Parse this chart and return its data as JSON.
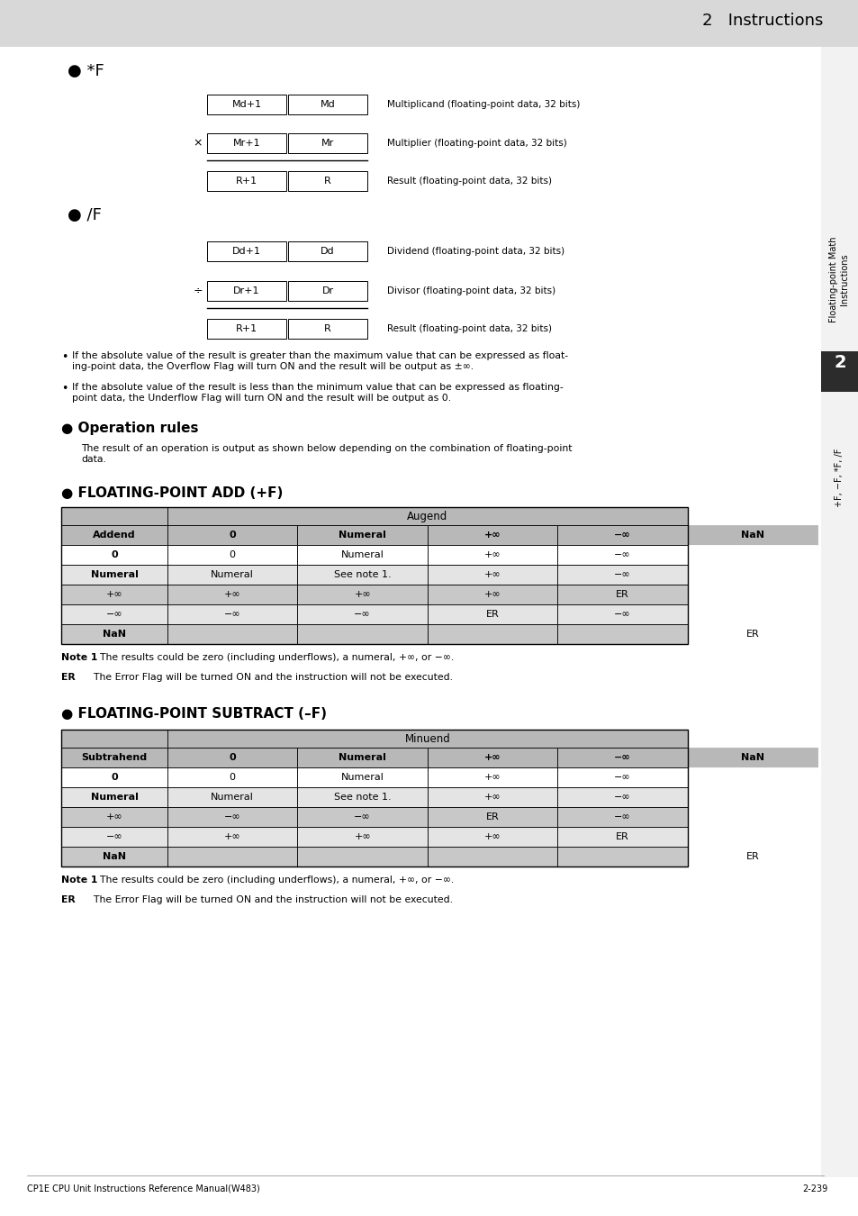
{
  "page_header": "2   Instructions",
  "bg_color": "#ffffff",
  "header_bg": "#d8d8d8",
  "section1_title": "● *F",
  "section2_title": "● /F",
  "section3_title": "● Operation rules",
  "section4_title": "● FLOATING-POINT ADD (+F)",
  "section5_title": "● FLOATING-POINT SUBTRACT (–F)",
  "multiply_rows": [
    {
      "left": "Md+1",
      "right": "Md",
      "label": "Multiplicand (floating-point data, 32 bits)",
      "prefix": ""
    },
    {
      "left": "Mr+1",
      "right": "Mr",
      "label": "Multiplier (floating-point data, 32 bits)",
      "prefix": "×"
    },
    {
      "left": "R+1",
      "right": "R",
      "label": "Result (floating-point data, 32 bits)",
      "prefix": ""
    }
  ],
  "divide_rows": [
    {
      "left": "Dd+1",
      "right": "Dd",
      "label": "Dividend (floating-point data, 32 bits)",
      "prefix": ""
    },
    {
      "left": "Dr+1",
      "right": "Dr",
      "label": "Divisor (floating-point data, 32 bits)",
      "prefix": "÷"
    },
    {
      "left": "R+1",
      "right": "R",
      "label": "Result (floating-point data, 32 bits)",
      "prefix": ""
    }
  ],
  "bullet1": "If the absolute value of the result is greater than the maximum value that can be expressed as float-\ning-point data, the Overflow Flag will turn ON and the result will be output as ±∞.",
  "bullet2": "If the absolute value of the result is less than the minimum value that can be expressed as floating-\npoint data, the Underflow Flag will turn ON and the result will be output as 0.",
  "op_body": "The result of an operation is output as shown below depending on the combination of floating-point\ndata.",
  "add_table": {
    "top_header": "Augend",
    "col_header": "Addend",
    "columns": [
      "0",
      "Numeral",
      "+∞",
      "−∞",
      "NaN"
    ],
    "rows": [
      {
        "label": "0",
        "bold": true,
        "cells": [
          "0",
          "Numeral",
          "+∞",
          "−∞",
          ""
        ]
      },
      {
        "label": "Numeral",
        "bold": true,
        "cells": [
          "Numeral",
          "See note 1.",
          "+∞",
          "−∞",
          ""
        ]
      },
      {
        "label": "+∞",
        "bold": false,
        "cells": [
          "+∞",
          "+∞",
          "+∞",
          "ER",
          ""
        ]
      },
      {
        "label": "−∞",
        "bold": false,
        "cells": [
          "−∞",
          "−∞",
          "ER",
          "−∞",
          ""
        ]
      },
      {
        "label": "NaN",
        "bold": true,
        "cells": [
          "",
          "",
          "",
          "",
          "ER"
        ]
      }
    ]
  },
  "sub_table": {
    "top_header": "Minuend",
    "col_header": "Subtrahend",
    "columns": [
      "0",
      "Numeral",
      "+∞",
      "−∞",
      "NaN"
    ],
    "rows": [
      {
        "label": "0",
        "bold": true,
        "cells": [
          "0",
          "Numeral",
          "+∞",
          "−∞",
          ""
        ]
      },
      {
        "label": "Numeral",
        "bold": true,
        "cells": [
          "Numeral",
          "See note 1.",
          "+∞",
          "−∞",
          ""
        ]
      },
      {
        "label": "+∞",
        "bold": false,
        "cells": [
          "−∞",
          "−∞",
          "ER",
          "−∞",
          ""
        ]
      },
      {
        "label": "−∞",
        "bold": false,
        "cells": [
          "+∞",
          "+∞",
          "+∞",
          "ER",
          ""
        ]
      },
      {
        "label": "NaN",
        "bold": true,
        "cells": [
          "",
          "",
          "",
          "",
          "ER"
        ]
      }
    ]
  },
  "note1_bold": "Note 1",
  "note1_rest": "  The results could be zero (including underflows), a numeral, +∞, or −∞.",
  "er_bold": "ER",
  "er_rest": "    The Error Flag will be turned ON and the instruction will not be executed.",
  "footer_left": "CP1E CPU Unit Instructions Reference Manual(W483)",
  "footer_right": "2-239",
  "sidebar_text": "Floating-point Math\nInstructions",
  "sidebar_num": "2",
  "sidebar_bottom": "+F, −F, *F, /F"
}
